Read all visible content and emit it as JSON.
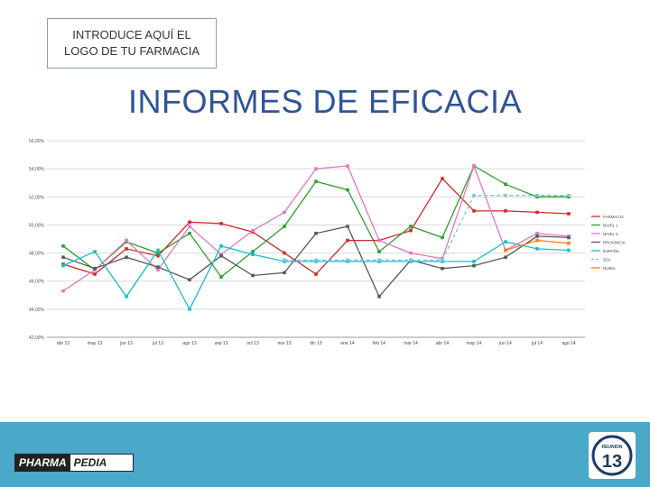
{
  "header": {
    "logo_placeholder_line1": "INTRODUCE AQUÍ EL",
    "logo_placeholder_line2": "LOGO DE TU FARMACIA",
    "title": "INFORMES DE EFICACIA"
  },
  "footer": {
    "brand_left": "PHARMA",
    "brand_right": "PEDIA",
    "badge_top": "REUNION",
    "badge_number": "13"
  },
  "chart_data": {
    "type": "line",
    "ylim": [
      42,
      56
    ],
    "yticks": [
      "42,00%",
      "44,00%",
      "46,00%",
      "48,00%",
      "50,00%",
      "52,00%",
      "54,00%",
      "56,00%"
    ],
    "categories": [
      "abr 13",
      "may 13",
      "jun 13",
      "jul 13",
      "ago 13",
      "sep 13",
      "oct 13",
      "nov 13",
      "dic 13",
      "ene 14",
      "feb 14",
      "mar 14",
      "abr 14",
      "may 14",
      "jun 14",
      "jul 14",
      "ago 14"
    ],
    "grid": true,
    "legend_position": "right",
    "series": [
      {
        "name": "FARMACIA",
        "color": "#d62728",
        "style": "solid",
        "values": [
          47.2,
          46.5,
          48.3,
          47.8,
          50.2,
          50.1,
          49.5,
          48.0,
          46.5,
          48.9,
          48.9,
          49.6,
          53.3,
          51.0,
          51.0,
          50.9,
          50.8
        ]
      },
      {
        "name": "NIVEL 1",
        "color": "#2ca02c",
        "style": "solid",
        "values": [
          48.5,
          46.8,
          48.8,
          48.0,
          49.4,
          46.3,
          48.1,
          49.9,
          53.1,
          52.5,
          48.1,
          49.9,
          49.1,
          54.2,
          52.9,
          52.0,
          52.0
        ]
      },
      {
        "name": "NIVEL 2",
        "color": "#e377c2",
        "style": "solid",
        "values": [
          45.3,
          46.8,
          48.9,
          46.8,
          49.9,
          47.9,
          49.6,
          50.9,
          54.0,
          54.2,
          48.9,
          48.0,
          47.6,
          54.2,
          48.2,
          49.4,
          49.2
        ]
      },
      {
        "name": "PROVINCIA",
        "color": "#595959",
        "style": "solid",
        "values": [
          47.7,
          46.9,
          47.7,
          47.0,
          46.1,
          47.8,
          46.4,
          46.6,
          49.4,
          49.9,
          44.9,
          47.5,
          46.9,
          47.1,
          47.7,
          49.2,
          49.1
        ]
      },
      {
        "name": "ESPAÑA",
        "color": "#17becf",
        "style": "solid",
        "values": [
          47.1,
          48.1,
          44.9,
          48.2,
          44.0,
          48.5,
          47.9,
          47.4,
          47.4,
          47.4,
          47.4,
          47.4,
          47.4,
          47.4,
          48.8,
          48.3,
          48.2
        ]
      },
      {
        "name": "SOL",
        "color": "#7cc7d9",
        "style": "dashed",
        "values": [
          null,
          null,
          null,
          null,
          null,
          null,
          null,
          47.5,
          47.5,
          47.5,
          47.5,
          47.5,
          47.5,
          52.1,
          52.1,
          52.1,
          52.1
        ]
      },
      {
        "name": "NUBIA",
        "color": "#ff7f0e",
        "style": "solid",
        "values": [
          null,
          null,
          null,
          null,
          null,
          null,
          null,
          null,
          null,
          null,
          null,
          null,
          null,
          null,
          48.2,
          48.9,
          48.7
        ]
      }
    ]
  }
}
